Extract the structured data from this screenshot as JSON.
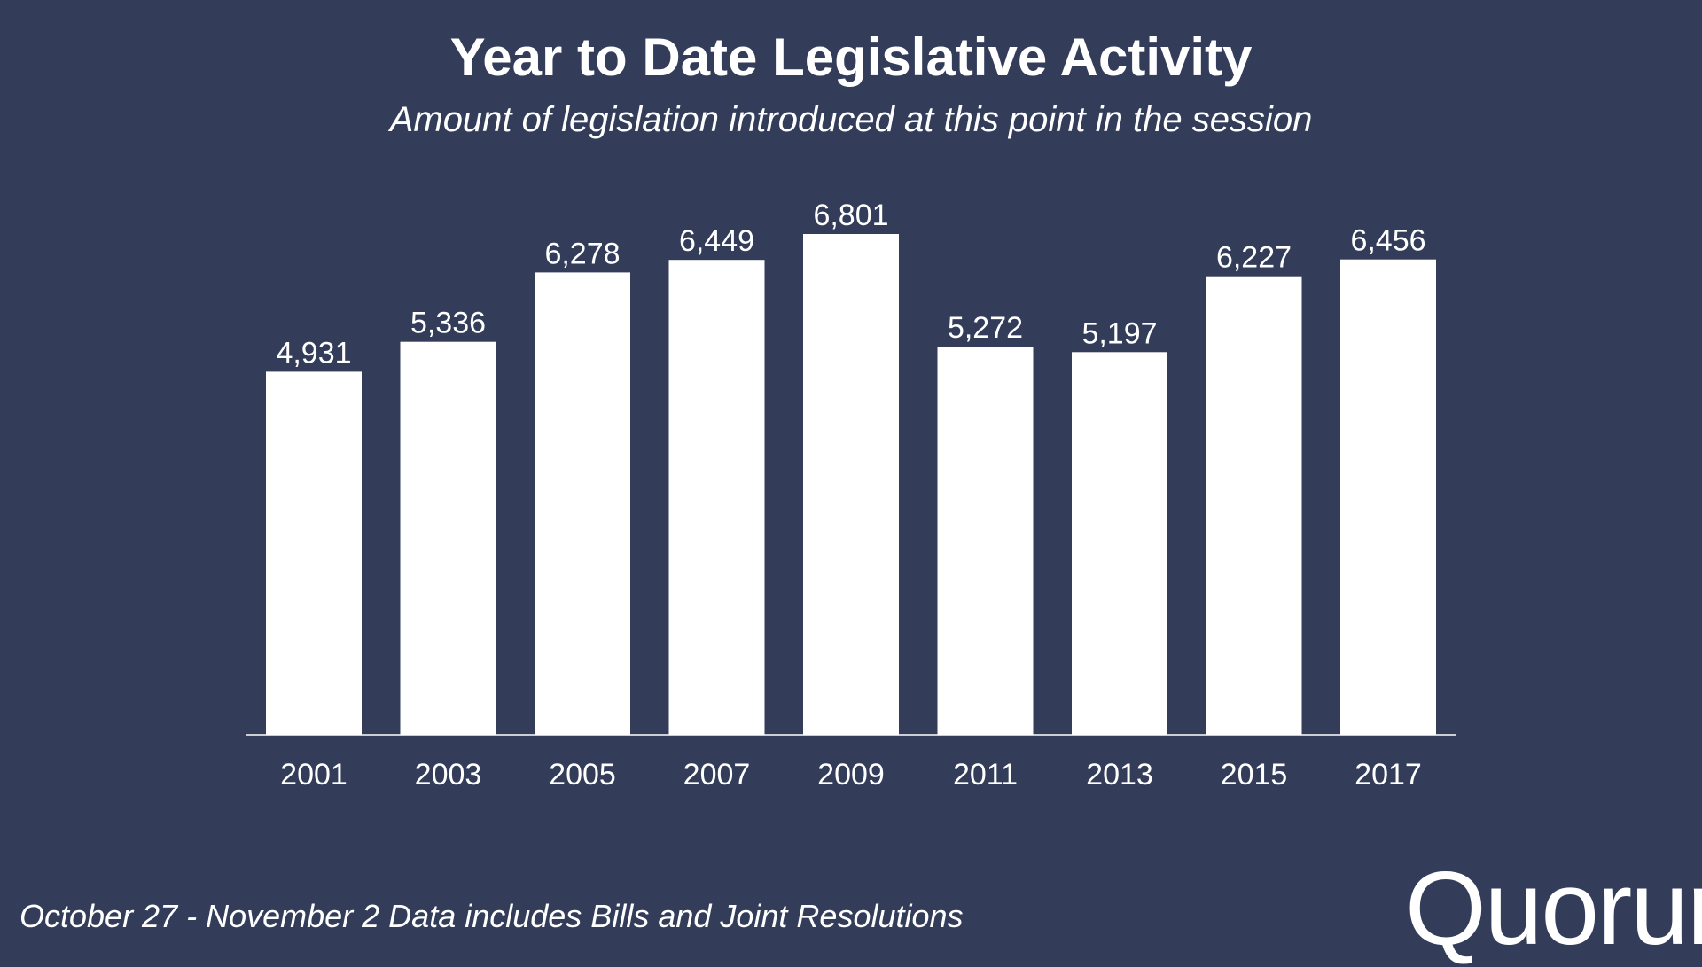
{
  "header": {
    "title": "Year to Date Legislative Activity",
    "subtitle": "Amount of legislation introduced at this point in the session"
  },
  "footer": {
    "note": "October 27 - November 2 Data includes Bills and Joint Resolutions",
    "logo_text": "Quorum"
  },
  "colors": {
    "background": "#333d5a",
    "bar": "#ffffff",
    "text": "#ffffff"
  },
  "chart_data": {
    "type": "bar",
    "title": "Year to Date Legislative Activity",
    "subtitle": "Amount of legislation introduced at this point in the session",
    "xlabel": "",
    "ylabel": "",
    "categories": [
      "2001",
      "2003",
      "2005",
      "2007",
      "2009",
      "2011",
      "2013",
      "2015",
      "2017"
    ],
    "values": [
      4931,
      5336,
      6278,
      6449,
      6801,
      5272,
      5197,
      6227,
      6456
    ],
    "value_labels": [
      "4,931",
      "5,336",
      "6,278",
      "6,449",
      "6,801",
      "5,272",
      "5,197",
      "6,227",
      "6,456"
    ],
    "ylim": [
      0,
      6801
    ],
    "grid": false,
    "legend": "none"
  }
}
